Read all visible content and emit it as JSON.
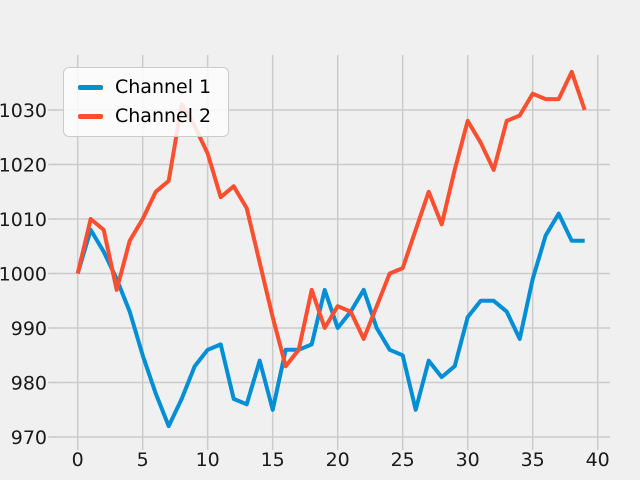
{
  "window": {
    "background_color": "#f0f0f0"
  },
  "chart_data": {
    "type": "line",
    "title": "",
    "xlabel": "",
    "ylabel": "",
    "grid": true,
    "grid_color": "#cbcbcb",
    "line_width": 4,
    "x": [
      0,
      1,
      2,
      3,
      4,
      5,
      6,
      7,
      8,
      9,
      10,
      11,
      12,
      13,
      14,
      15,
      16,
      17,
      18,
      19,
      20,
      21,
      22,
      23,
      24,
      25,
      26,
      27,
      28,
      29,
      30,
      31,
      32,
      33,
      34,
      35,
      36,
      37,
      38,
      39
    ],
    "series": [
      {
        "name": "Channel 1",
        "color": "#008fd5",
        "values": [
          1000,
          1008,
          1004,
          999,
          993,
          985,
          978,
          972,
          977,
          983,
          986,
          987,
          977,
          976,
          984,
          975,
          986,
          986,
          987,
          997,
          990,
          993,
          997,
          990,
          986,
          985,
          975,
          984,
          981,
          983,
          992,
          995,
          995,
          993,
          988,
          999,
          1007,
          1011,
          1006,
          1006
        ]
      },
      {
        "name": "Channel 2",
        "color": "#fc4f30",
        "values": [
          1000,
          1010,
          1008,
          997,
          1006,
          1010,
          1015,
          1017,
          1031,
          1027,
          1022,
          1014,
          1016,
          1012,
          1002,
          992,
          983,
          986,
          997,
          990,
          994,
          993,
          988,
          994,
          1000,
          1001,
          1008,
          1015,
          1009,
          1019,
          1028,
          1024,
          1019,
          1028,
          1029,
          1033,
          1032,
          1032,
          1037,
          1030
        ]
      }
    ],
    "xticks": [
      0,
      5,
      10,
      15,
      20,
      25,
      30,
      35,
      40
    ],
    "yticks": [
      970,
      980,
      990,
      1000,
      1010,
      1020,
      1030
    ],
    "xlim": [
      -1.975,
      40.975
    ],
    "ylim": [
      968.9,
      1040.1
    ],
    "legend": {
      "position": "upper-left",
      "entries": [
        "Channel 1",
        "Channel 2"
      ]
    }
  }
}
